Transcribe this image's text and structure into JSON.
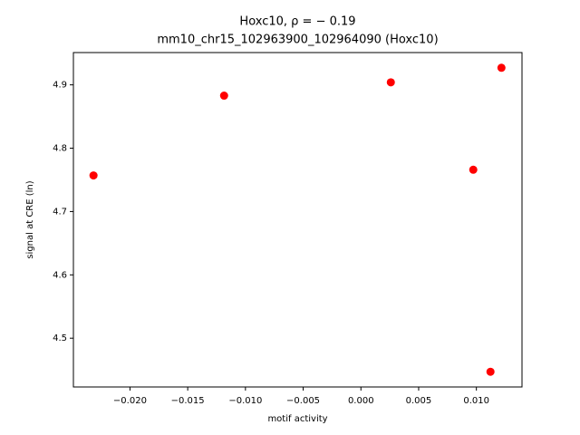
{
  "chart_data": {
    "type": "scatter",
    "title": "Hoxc10, ρ = − 0.19",
    "subtitle": "mm10_chr15_102963900_102964090 (Hoxc10)",
    "x_label": "motif activity",
    "y_label": "signal at CRE (ln)",
    "color": "#ff0000",
    "x": [
      -0.02316,
      -0.01185,
      0.00259,
      0.00973,
      0.01217,
      0.01122
    ],
    "y": [
      4.757,
      4.883,
      4.904,
      4.766,
      4.927,
      4.447
    ],
    "xlim": [
      -0.0249,
      0.01395
    ],
    "ylim": [
      4.423,
      4.951
    ],
    "xticks": [
      {
        "value": -0.02,
        "label": "−0.020"
      },
      {
        "value": -0.015,
        "label": "−0.015"
      },
      {
        "value": -0.01,
        "label": "−0.010"
      },
      {
        "value": -0.005,
        "label": "−0.005"
      },
      {
        "value": 0,
        "label": "0.000"
      },
      {
        "value": 0.005,
        "label": "0.005"
      },
      {
        "value": 0.01,
        "label": "0.010"
      }
    ],
    "yticks": [
      4.5,
      4.6,
      4.7,
      4.8,
      4.9
    ],
    "grid": false
  }
}
